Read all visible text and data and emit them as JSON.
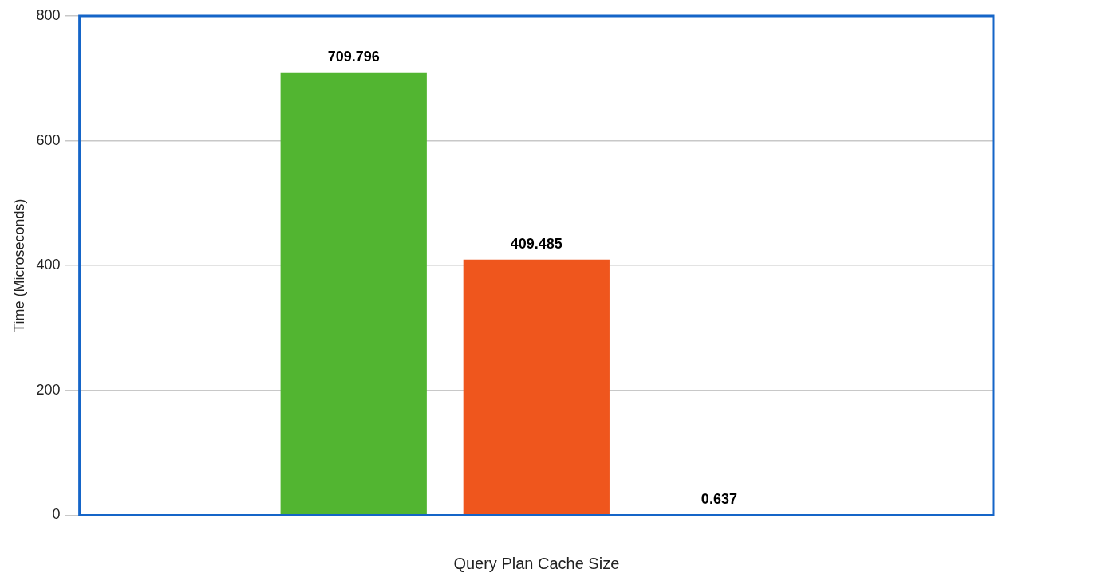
{
  "chart_data": {
    "type": "bar",
    "xlabel": "Query Plan Cache Size",
    "ylabel": "Time (Microseconds)",
    "categories": [
      null
    ],
    "series": [
      {
        "color": "#52b531",
        "values": [
          709.796
        ]
      },
      {
        "color": "#ef561d",
        "values": [
          409.485
        ]
      },
      {
        "color": "#1c6fc8",
        "values": [
          0.637
        ]
      }
    ],
    "ylim": [
      0,
      800
    ],
    "yticks": [
      0,
      200,
      400,
      600,
      800
    ],
    "grid": "y",
    "data_labels": true
  }
}
